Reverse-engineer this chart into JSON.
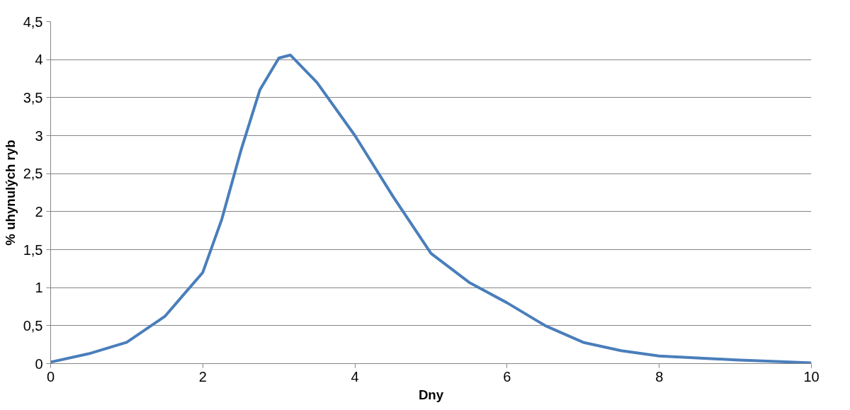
{
  "chart_data": {
    "type": "line",
    "xlabel": "Dny",
    "ylabel": "% uhynulých ryb",
    "x": [
      0,
      0.5,
      1,
      1.5,
      2,
      2.25,
      2.5,
      2.75,
      3,
      3.15,
      3.5,
      4,
      4.5,
      5,
      5.5,
      6,
      6.5,
      7,
      7.5,
      8,
      9,
      10
    ],
    "series": [
      {
        "color": "#4a7ebb",
        "values": [
          0.02,
          0.13,
          0.28,
          0.62,
          1.2,
          1.9,
          2.8,
          3.6,
          4.02,
          4.06,
          3.7,
          3.0,
          2.2,
          1.45,
          1.07,
          0.8,
          0.5,
          0.28,
          0.17,
          0.1,
          0.05,
          0.01
        ]
      }
    ],
    "xlim": [
      0,
      10
    ],
    "xticks": [
      0,
      2,
      4,
      6,
      8,
      10
    ],
    "ylim": [
      0,
      4.5
    ],
    "yticks": [
      {
        "value": 0,
        "label": "0"
      },
      {
        "value": 0.5,
        "label": "0,5"
      },
      {
        "value": 1,
        "label": "1"
      },
      {
        "value": 1.5,
        "label": "1,5"
      },
      {
        "value": 2,
        "label": "2"
      },
      {
        "value": 2.5,
        "label": "2,5"
      },
      {
        "value": 3,
        "label": "3"
      },
      {
        "value": 3.5,
        "label": "3,5"
      },
      {
        "value": 4,
        "label": "4"
      },
      {
        "value": 4.5,
        "label": "4,5"
      }
    ],
    "grid": "y",
    "marker": "none",
    "line_style": "solid"
  }
}
